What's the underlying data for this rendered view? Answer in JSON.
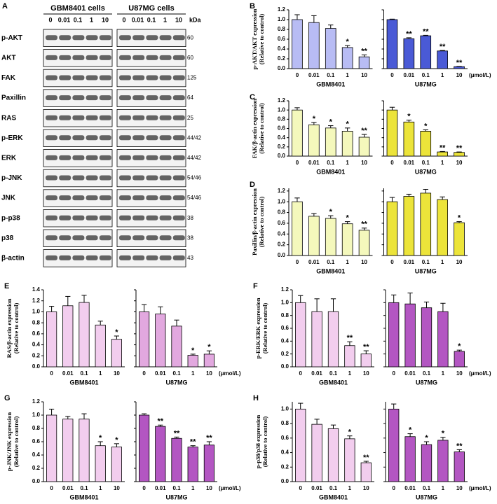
{
  "blot": {
    "label": "A",
    "cell_lines": [
      "GBM8401 cells",
      "U87MG cells"
    ],
    "doses": [
      "0",
      "0.01",
      "0.1",
      "1",
      "10"
    ],
    "kda_header": "kDa",
    "rows": [
      {
        "name": "p-AKT",
        "kda": "60"
      },
      {
        "name": "AKT",
        "kda": "60"
      },
      {
        "name": "FAK",
        "kda": "125"
      },
      {
        "name": "Paxillin",
        "kda": "64"
      },
      {
        "name": "RAS",
        "kda": "25"
      },
      {
        "name": "p-ERK",
        "kda": "44/42"
      },
      {
        "name": "ERK",
        "kda": "44/42"
      },
      {
        "name": "p-JNK",
        "kda": "54/46"
      },
      {
        "name": "JNK",
        "kda": "54/46"
      },
      {
        "name": "p-p38",
        "kda": "38"
      },
      {
        "name": "p38",
        "kda": "38"
      },
      {
        "name": "β-actin",
        "kda": "43"
      }
    ]
  },
  "chart_data": [
    {
      "type": "bar",
      "panel": "B",
      "ylabel": [
        "p-AKT/AKT expression",
        "(Relative to control)"
      ],
      "unit_label": "(μmol/L)",
      "categories": [
        "0",
        "0.01",
        "0.1",
        "1",
        "10"
      ],
      "ylim": [
        0,
        1.2
      ],
      "yticks": [
        {
          "value": 0,
          "label": "0.0"
        },
        {
          "value": 0.2,
          "label": "0.2"
        },
        {
          "value": 0.4,
          "label": "0.4"
        },
        {
          "value": 0.6,
          "label": "0.6"
        },
        {
          "value": 0.8,
          "label": "0.8"
        },
        {
          "value": 1,
          "label": "1.0"
        },
        {
          "value": 1.2,
          "label": "1.2"
        }
      ],
      "series": [
        {
          "name": "GBM8401",
          "color": "#b8bcf4",
          "values": [
            1.0,
            0.94,
            0.82,
            0.43,
            0.24
          ],
          "errors": [
            0.1,
            0.14,
            0.07,
            0.04,
            0.04
          ],
          "annotations": [
            null,
            null,
            null,
            "*",
            "**"
          ]
        },
        {
          "name": "U87MG",
          "color": "#4a5ad6",
          "values": [
            1.0,
            0.61,
            0.67,
            0.36,
            0.04
          ],
          "errors": [
            0.01,
            0.02,
            0.01,
            0.01,
            0.005
          ],
          "annotations": [
            null,
            "**",
            "**",
            "**",
            "**"
          ]
        }
      ]
    },
    {
      "type": "bar",
      "panel": "C",
      "ylabel": [
        "FAK/β-actin expression",
        "(Relative to control)"
      ],
      "categories": [
        "0",
        "0.01",
        "0.1",
        "1",
        "10"
      ],
      "ylim": [
        0,
        1.2
      ],
      "yticks": [
        {
          "value": 0,
          "label": "0.0"
        },
        {
          "value": 0.2,
          "label": "0.2"
        },
        {
          "value": 0.4,
          "label": "0.4"
        },
        {
          "value": 0.6,
          "label": "0.6"
        },
        {
          "value": 0.8,
          "label": "0.8"
        },
        {
          "value": 1,
          "label": "1.0"
        },
        {
          "value": 1.2,
          "label": "1.2"
        }
      ],
      "series": [
        {
          "name": "GBM8401",
          "color": "#f4f8bc",
          "values": [
            1.0,
            0.68,
            0.61,
            0.54,
            0.41
          ],
          "errors": [
            0.05,
            0.05,
            0.05,
            0.07,
            0.06
          ],
          "annotations": [
            null,
            "*",
            "*",
            "*",
            "**"
          ]
        },
        {
          "name": "U87MG",
          "color": "#ece43a",
          "values": [
            1.0,
            0.74,
            0.54,
            0.09,
            0.08
          ],
          "errors": [
            0.06,
            0.04,
            0.03,
            0.01,
            0.01
          ],
          "annotations": [
            null,
            "*",
            "*",
            "**",
            "**"
          ]
        }
      ]
    },
    {
      "type": "bar",
      "panel": "D",
      "ylabel": [
        "Paxillin/β-actin expression",
        "(Relative to control)"
      ],
      "categories": [
        "0",
        "0.01",
        "0.1",
        "1",
        "10"
      ],
      "ylim": [
        0,
        1.25
      ],
      "yticks": [
        {
          "value": 0,
          "label": "0.0"
        },
        {
          "value": 0.2,
          "label": "0.2"
        },
        {
          "value": 0.4,
          "label": "0.4"
        },
        {
          "value": 0.6,
          "label": "0.6"
        },
        {
          "value": 0.8,
          "label": "0.8"
        },
        {
          "value": 1,
          "label": "1.0"
        },
        {
          "value": 1.2,
          "label": "1.2"
        }
      ],
      "series": [
        {
          "name": "GBM8401",
          "color": "#f4f8bc",
          "values": [
            1.0,
            0.73,
            0.69,
            0.59,
            0.47
          ],
          "errors": [
            0.07,
            0.05,
            0.05,
            0.04,
            0.04
          ],
          "annotations": [
            null,
            null,
            "*",
            "*",
            "**"
          ]
        },
        {
          "name": "U87MG",
          "color": "#ece43a",
          "values": [
            1.0,
            1.1,
            1.16,
            1.04,
            0.61
          ],
          "errors": [
            0.08,
            0.04,
            0.07,
            0.05,
            0.02
          ],
          "annotations": [
            null,
            null,
            null,
            null,
            "*"
          ]
        }
      ]
    },
    {
      "type": "bar",
      "panel": "E",
      "ylabel": [
        "RAS/β-actin expression",
        "(Relative to control)"
      ],
      "unit_label": "(μmol/L)",
      "categories": [
        "0",
        "0.01",
        "0.1",
        "1",
        "10"
      ],
      "ylim": [
        0,
        1.4
      ],
      "yticks": [
        {
          "value": 0,
          "label": "0.0"
        },
        {
          "value": 0.2,
          "label": "0.2"
        },
        {
          "value": 0.4,
          "label": "0.4"
        },
        {
          "value": 0.6,
          "label": "0.6"
        },
        {
          "value": 0.8,
          "label": "0.8"
        },
        {
          "value": 1,
          "label": "1.0"
        },
        {
          "value": 1.2,
          "label": "1.2"
        },
        {
          "value": 1.4,
          "label": "1.4"
        }
      ],
      "series": [
        {
          "name": "GBM8401",
          "color": "#f2cdee",
          "values": [
            1.0,
            1.11,
            1.17,
            0.76,
            0.5
          ],
          "errors": [
            0.1,
            0.17,
            0.13,
            0.07,
            0.06
          ],
          "annotations": [
            null,
            null,
            null,
            null,
            "*"
          ]
        },
        {
          "name": "U87MG",
          "color": "#e2a8df",
          "values": [
            1.0,
            0.96,
            0.74,
            0.21,
            0.23
          ],
          "errors": [
            0.13,
            0.13,
            0.11,
            0.02,
            0.06
          ],
          "annotations": [
            null,
            null,
            null,
            "*",
            "*"
          ]
        }
      ]
    },
    {
      "type": "bar",
      "panel": "F",
      "ylabel": [
        "p-ERK/ERK expression",
        "(Relative to control)"
      ],
      "unit_label": "(μmol/L)",
      "categories": [
        "0",
        "0.01",
        "0.1",
        "1",
        "10"
      ],
      "ylim": [
        0,
        1.2
      ],
      "yticks": [
        {
          "value": 0,
          "label": "0.0"
        },
        {
          "value": 0.2,
          "label": "0.2"
        },
        {
          "value": 0.4,
          "label": "0.4"
        },
        {
          "value": 0.6,
          "label": "0.6"
        },
        {
          "value": 0.8,
          "label": "0.8"
        },
        {
          "value": 1,
          "label": "1.0"
        },
        {
          "value": 1.2,
          "label": "1.2"
        }
      ],
      "series": [
        {
          "name": "GBM8401",
          "color": "#f2cdee",
          "values": [
            1.0,
            0.86,
            0.86,
            0.33,
            0.2
          ],
          "errors": [
            0.11,
            0.2,
            0.2,
            0.06,
            0.05
          ],
          "annotations": [
            null,
            null,
            null,
            "**",
            "**"
          ]
        },
        {
          "name": "U87MG",
          "color": "#b356c2",
          "values": [
            1.0,
            0.98,
            0.92,
            0.86,
            0.24
          ],
          "errors": [
            0.12,
            0.17,
            0.09,
            0.13,
            0.02
          ],
          "annotations": [
            null,
            null,
            null,
            null,
            "*"
          ]
        }
      ]
    },
    {
      "type": "bar",
      "panel": "G",
      "ylabel": [
        "p-JNK/JNK expression",
        "(Relative to control)"
      ],
      "unit_label": "(μmol/L)",
      "categories": [
        "0",
        "0.01",
        "0.1",
        "1",
        "10"
      ],
      "ylim": [
        0,
        1.2
      ],
      "yticks": [
        {
          "value": 0,
          "label": "0.0"
        },
        {
          "value": 0.2,
          "label": "0.2"
        },
        {
          "value": 0.4,
          "label": "0.4"
        },
        {
          "value": 0.6,
          "label": "0.6"
        },
        {
          "value": 0.8,
          "label": "0.8"
        },
        {
          "value": 1,
          "label": "1.0"
        },
        {
          "value": 1.2,
          "label": "1.2"
        }
      ],
      "series": [
        {
          "name": "GBM8401",
          "color": "#f2cdee",
          "values": [
            1.0,
            0.94,
            0.94,
            0.54,
            0.52
          ],
          "errors": [
            0.09,
            0.04,
            0.08,
            0.06,
            0.05
          ],
          "annotations": [
            null,
            null,
            null,
            "*",
            "*"
          ]
        },
        {
          "name": "U87MG",
          "color": "#b356c2",
          "values": [
            1.0,
            0.83,
            0.65,
            0.52,
            0.55
          ],
          "errors": [
            0.02,
            0.02,
            0.02,
            0.02,
            0.05
          ],
          "annotations": [
            null,
            "**",
            "**",
            "**",
            "**"
          ]
        }
      ]
    },
    {
      "type": "bar",
      "panel": "H",
      "ylabel": [
        "p-p38/p38 expression",
        "(Relative to control)"
      ],
      "unit_label": "(μmol/L)",
      "categories": [
        "0",
        "0.01",
        "0.1",
        "1",
        "10"
      ],
      "ylim": [
        0,
        1.1
      ],
      "yticks": [
        {
          "value": 0,
          "label": "0.0"
        },
        {
          "value": 0.2,
          "label": "0.2"
        },
        {
          "value": 0.4,
          "label": "0.4"
        },
        {
          "value": 0.6,
          "label": "0.6"
        },
        {
          "value": 0.8,
          "label": "0.8"
        },
        {
          "value": 1,
          "label": "1.0"
        }
      ],
      "series": [
        {
          "name": "GBM8401",
          "color": "#f2cdee",
          "values": [
            1.0,
            0.79,
            0.73,
            0.59,
            0.26
          ],
          "errors": [
            0.08,
            0.07,
            0.05,
            0.04,
            0.02
          ],
          "annotations": [
            null,
            null,
            null,
            "*",
            "**"
          ]
        },
        {
          "name": "U87MG",
          "color": "#b356c2",
          "values": [
            1.0,
            0.62,
            0.51,
            0.57,
            0.41
          ],
          "errors": [
            0.07,
            0.04,
            0.04,
            0.04,
            0.03
          ],
          "annotations": [
            null,
            "*",
            "*",
            "*",
            "**"
          ]
        }
      ]
    }
  ]
}
